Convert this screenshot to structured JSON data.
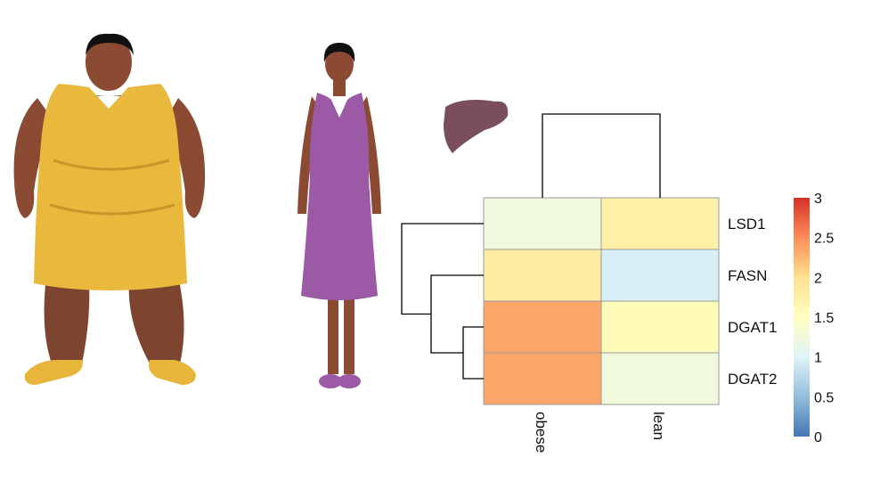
{
  "chart_data": {
    "type": "heatmap",
    "columns": [
      "obese",
      "lean"
    ],
    "rows": [
      "LSD1",
      "FASN",
      "DGAT1",
      "DGAT2"
    ],
    "values": [
      [
        1.25,
        1.75
      ],
      [
        1.8,
        0.95
      ],
      [
        2.35,
        1.55
      ],
      [
        2.35,
        1.25
      ]
    ],
    "scale": {
      "min": 0,
      "max": 3,
      "ticks": [
        "0",
        "0.5",
        "1",
        "1.5",
        "2",
        "2.5",
        "3"
      ],
      "colors": [
        "#4575b4",
        "#91bfdb",
        "#e0f3f8",
        "#ffffbf",
        "#fee090",
        "#fc8d59",
        "#d73027"
      ]
    },
    "column_dendrogram": true,
    "row_dendrogram": true
  },
  "illustrations": {
    "figure_left": "obese woman in yellow dress",
    "figure_middle": "lean woman in purple dress",
    "organ": "liver",
    "dress_colors": {
      "obese": "#e8b93c",
      "lean": "#9b59a6"
    },
    "skin_color": "#8a4b32",
    "liver_color": "#7b4e5c"
  }
}
